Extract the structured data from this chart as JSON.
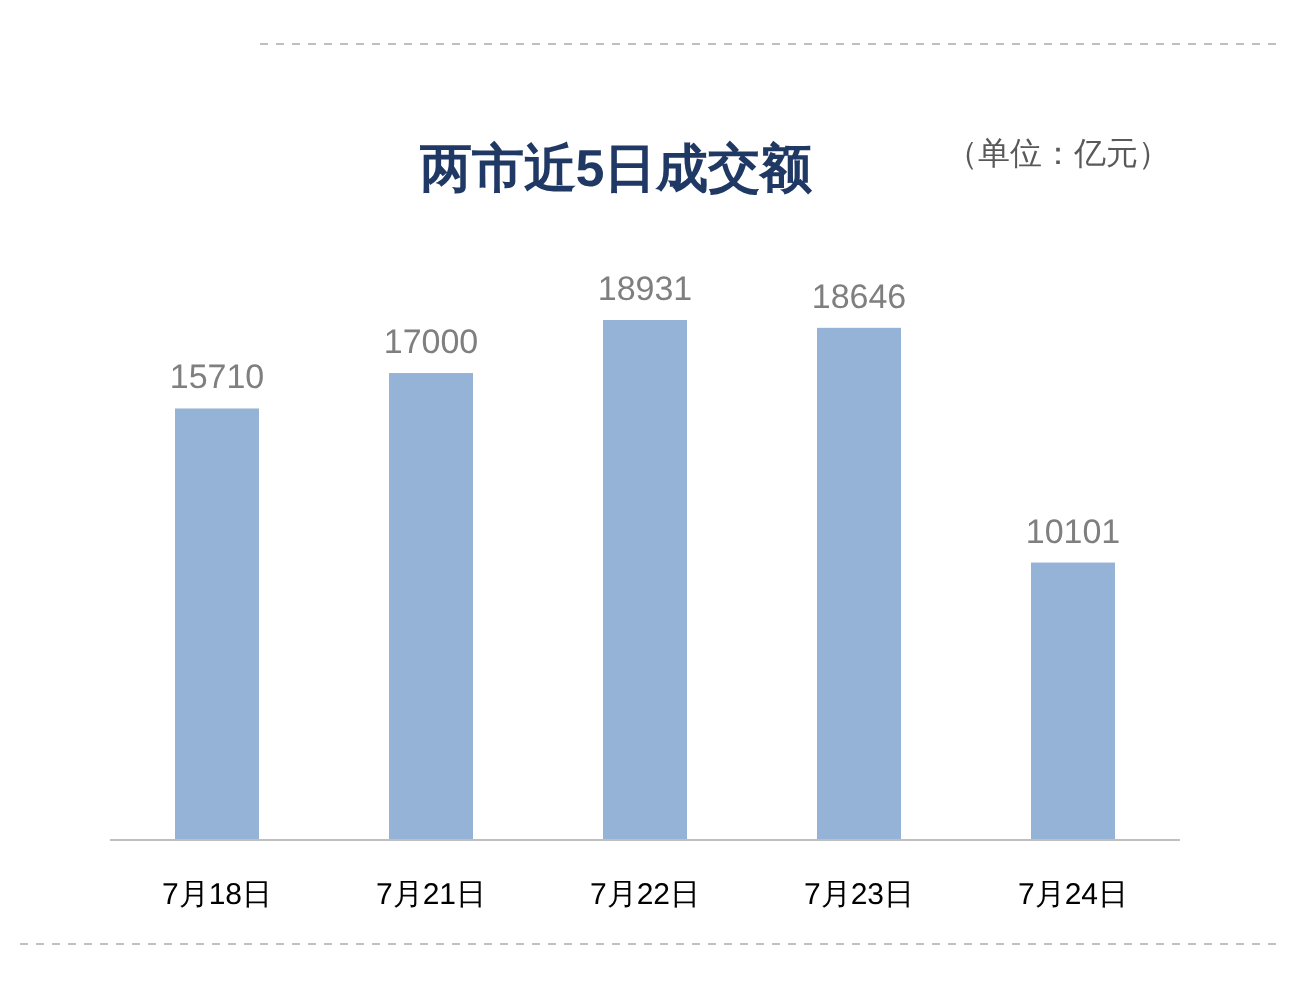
{
  "chart_data": {
    "type": "bar",
    "title": "两市近5日成交额",
    "annotations": [
      "（单位：亿元）"
    ],
    "categories": [
      "7月18日",
      "7月21日",
      "7月22日",
      "7月23日",
      "7月24日"
    ],
    "values": [
      15710,
      17000,
      18931,
      18646,
      10101
    ],
    "color": "#95b3d7",
    "data_labels": true
  }
}
